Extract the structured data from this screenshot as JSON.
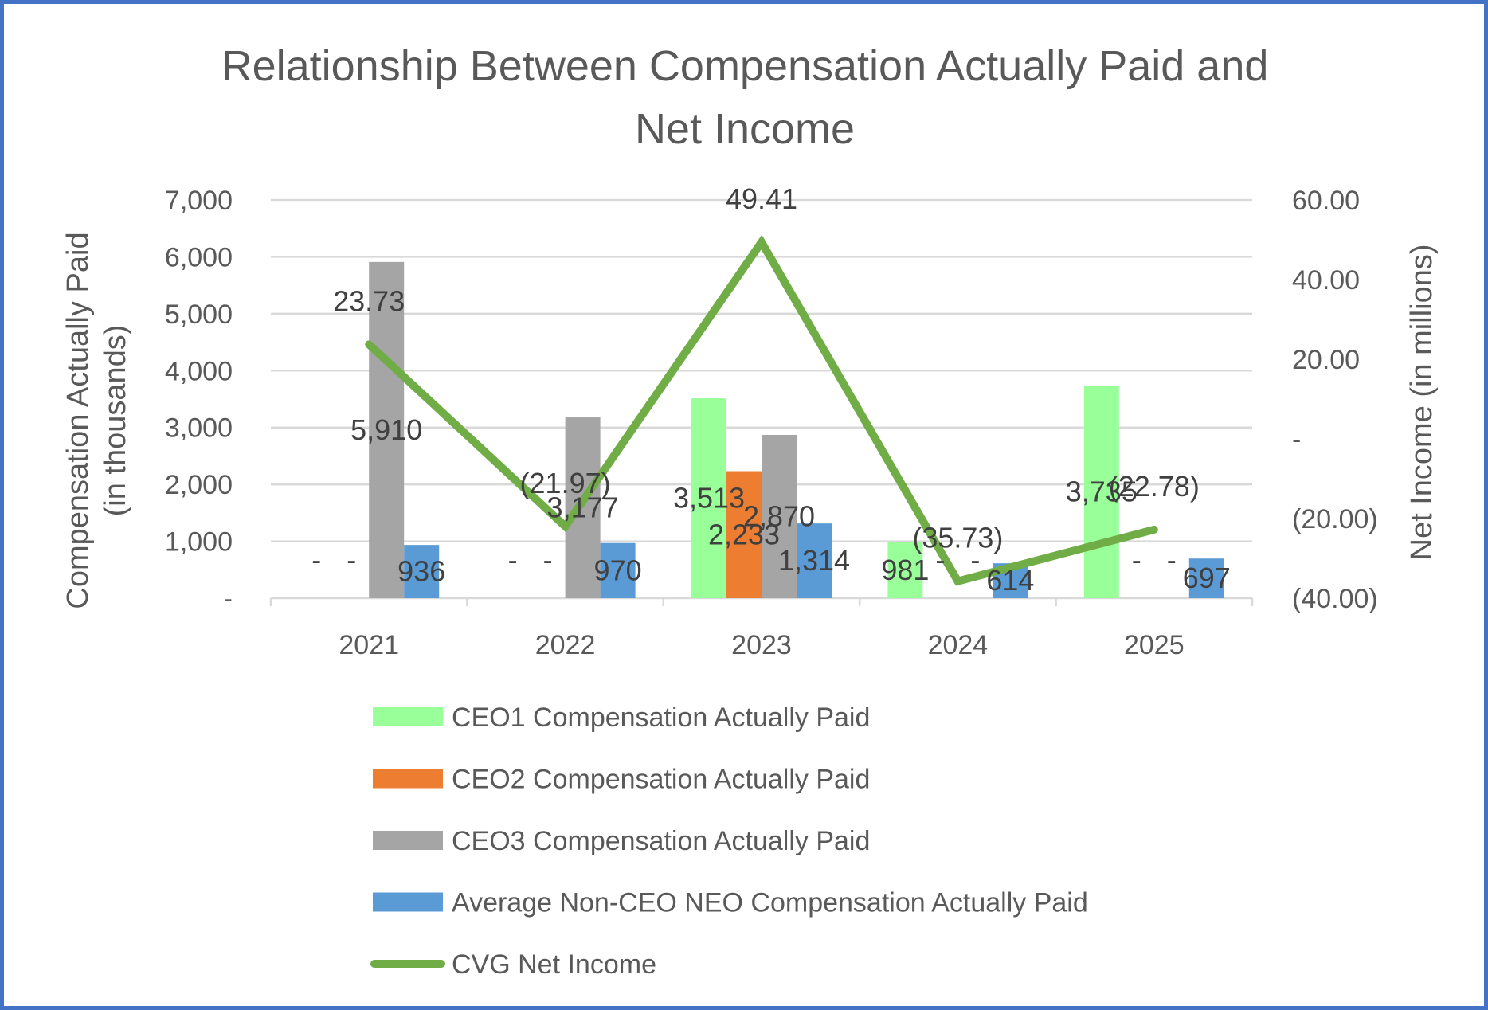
{
  "chart_data": {
    "type": "bar",
    "title": "Relationship Between Compensation Actually Paid and Net Income",
    "title_lines": [
      "Relationship Between Compensation Actually Paid and",
      "Net Income"
    ],
    "categories": [
      "2021",
      "2022",
      "2023",
      "2024",
      "2025"
    ],
    "ylabel_lines": [
      "Compensation Actually Paid",
      "(in thousands)"
    ],
    "y2label": "Net Income (in millions)",
    "ylim": [
      0,
      7000
    ],
    "y_ticks": [
      0,
      1000,
      2000,
      3000,
      4000,
      5000,
      6000,
      7000
    ],
    "y_tick_labels": [
      "-",
      "1,000",
      "2,000",
      "3,000",
      "4,000",
      "5,000",
      "6,000",
      "7,000"
    ],
    "y2lim": [
      -40,
      60
    ],
    "y2_ticks": [
      -40,
      -20,
      0,
      20,
      40,
      60
    ],
    "y2_tick_labels": [
      "(40.00)",
      "(20.00)",
      "-",
      "20.00",
      "40.00",
      "60.00"
    ],
    "grid": true,
    "legend_position": "bottom",
    "series": [
      {
        "name": "CEO1 Compensation Actually Paid",
        "kind": "bar",
        "color": "#99FF99",
        "values": [
          0,
          0,
          3513,
          981,
          3735
        ],
        "labels": [
          "-",
          "-",
          "3,513",
          "981",
          "3,735"
        ]
      },
      {
        "name": "CEO2 Compensation Actually Paid",
        "kind": "bar",
        "color": "#ED7D31",
        "values": [
          0,
          0,
          2233,
          0,
          0
        ],
        "labels": [
          "-",
          "-",
          "2,233",
          "-",
          "-"
        ]
      },
      {
        "name": "CEO3 Compensation Actually Paid",
        "kind": "bar",
        "color": "#A5A5A5",
        "values": [
          5910,
          3177,
          2870,
          0,
          0
        ],
        "labels": [
          "5,910",
          "3,177",
          "2,870",
          "-",
          "-"
        ]
      },
      {
        "name": "Average Non-CEO NEO Compensation Actually Paid",
        "kind": "bar",
        "color": "#5B9BD5",
        "values": [
          936,
          970,
          1314,
          614,
          697
        ],
        "labels": [
          "936",
          "970",
          "1,314",
          "614",
          "697"
        ]
      },
      {
        "name": "CVG Net Income",
        "kind": "line",
        "axis": "secondary",
        "color": "#70AD47",
        "values": [
          23.73,
          -21.97,
          49.41,
          -35.73,
          -22.78
        ],
        "labels": [
          "23.73",
          "(21.97)",
          "49.41",
          "(35.73)",
          "(22.78)"
        ]
      }
    ]
  }
}
